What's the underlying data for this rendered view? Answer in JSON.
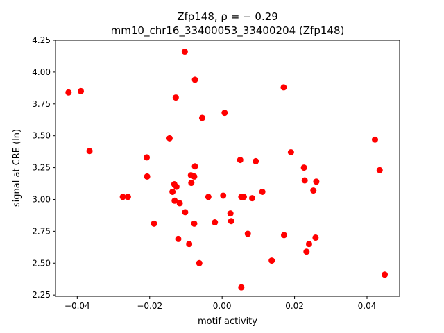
{
  "chart_data": {
    "type": "scatter",
    "title_line1": "Zfp148, ρ = − 0.29",
    "title_line2": "mm10_chr16_33400053_33400204 (Zfp148)",
    "xlabel": "motif activity",
    "ylabel": "signal at CRE (ln)",
    "xlim": [
      -0.046,
      0.049
    ],
    "ylim": [
      2.24,
      4.25
    ],
    "xticks": [
      -0.04,
      -0.02,
      0.0,
      0.02,
      0.04
    ],
    "xtick_labels": [
      "−0.04",
      "−0.02",
      "0.00",
      "0.02",
      "0.04"
    ],
    "yticks": [
      2.25,
      2.5,
      2.75,
      3.0,
      3.25,
      3.5,
      3.75,
      4.0,
      4.25
    ],
    "ytick_labels": [
      "2.25",
      "2.50",
      "2.75",
      "3.00",
      "3.25",
      "3.50",
      "3.75",
      "4.00",
      "4.25"
    ],
    "grid": false,
    "marker_color": "#ff0000",
    "points": [
      {
        "x": -0.0424,
        "y": 3.84
      },
      {
        "x": -0.039,
        "y": 3.85
      },
      {
        "x": -0.0366,
        "y": 3.38
      },
      {
        "x": -0.0274,
        "y": 3.02
      },
      {
        "x": -0.026,
        "y": 3.02
      },
      {
        "x": -0.0208,
        "y": 3.33
      },
      {
        "x": -0.0207,
        "y": 3.18
      },
      {
        "x": -0.0188,
        "y": 2.81
      },
      {
        "x": -0.0145,
        "y": 3.48
      },
      {
        "x": -0.0137,
        "y": 3.06
      },
      {
        "x": -0.0132,
        "y": 3.12
      },
      {
        "x": -0.0131,
        "y": 2.99
      },
      {
        "x": -0.0128,
        "y": 3.8
      },
      {
        "x": -0.0126,
        "y": 3.1
      },
      {
        "x": -0.0121,
        "y": 2.69
      },
      {
        "x": -0.0117,
        "y": 2.97
      },
      {
        "x": -0.0103,
        "y": 4.16
      },
      {
        "x": -0.0102,
        "y": 2.9
      },
      {
        "x": -0.0091,
        "y": 2.65
      },
      {
        "x": -0.0086,
        "y": 3.19
      },
      {
        "x": -0.0085,
        "y": 3.13
      },
      {
        "x": -0.0077,
        "y": 3.18
      },
      {
        "x": -0.0075,
        "y": 3.94
      },
      {
        "x": -0.0075,
        "y": 3.26
      },
      {
        "x": -0.0077,
        "y": 2.81
      },
      {
        "x": -0.0063,
        "y": 2.5
      },
      {
        "x": -0.0055,
        "y": 3.64
      },
      {
        "x": -0.0038,
        "y": 3.02
      },
      {
        "x": -0.002,
        "y": 2.82
      },
      {
        "x": 0.0003,
        "y": 3.03
      },
      {
        "x": 0.0007,
        "y": 3.68
      },
      {
        "x": 0.0023,
        "y": 2.89
      },
      {
        "x": 0.0025,
        "y": 2.83
      },
      {
        "x": 0.005,
        "y": 3.31
      },
      {
        "x": 0.0053,
        "y": 3.02
      },
      {
        "x": 0.0053,
        "y": 2.31
      },
      {
        "x": 0.006,
        "y": 3.02
      },
      {
        "x": 0.0071,
        "y": 2.73
      },
      {
        "x": 0.0083,
        "y": 3.01
      },
      {
        "x": 0.0093,
        "y": 3.3
      },
      {
        "x": 0.0111,
        "y": 3.06
      },
      {
        "x": 0.0137,
        "y": 2.52
      },
      {
        "x": 0.017,
        "y": 3.88
      },
      {
        "x": 0.0171,
        "y": 2.72
      },
      {
        "x": 0.019,
        "y": 3.37
      },
      {
        "x": 0.0226,
        "y": 3.25
      },
      {
        "x": 0.0228,
        "y": 3.15
      },
      {
        "x": 0.0233,
        "y": 2.59
      },
      {
        "x": 0.024,
        "y": 2.65
      },
      {
        "x": 0.0252,
        "y": 3.07
      },
      {
        "x": 0.0258,
        "y": 2.7
      },
      {
        "x": 0.026,
        "y": 3.14
      },
      {
        "x": 0.0422,
        "y": 3.47
      },
      {
        "x": 0.0435,
        "y": 3.23
      },
      {
        "x": 0.0449,
        "y": 2.41
      }
    ]
  }
}
